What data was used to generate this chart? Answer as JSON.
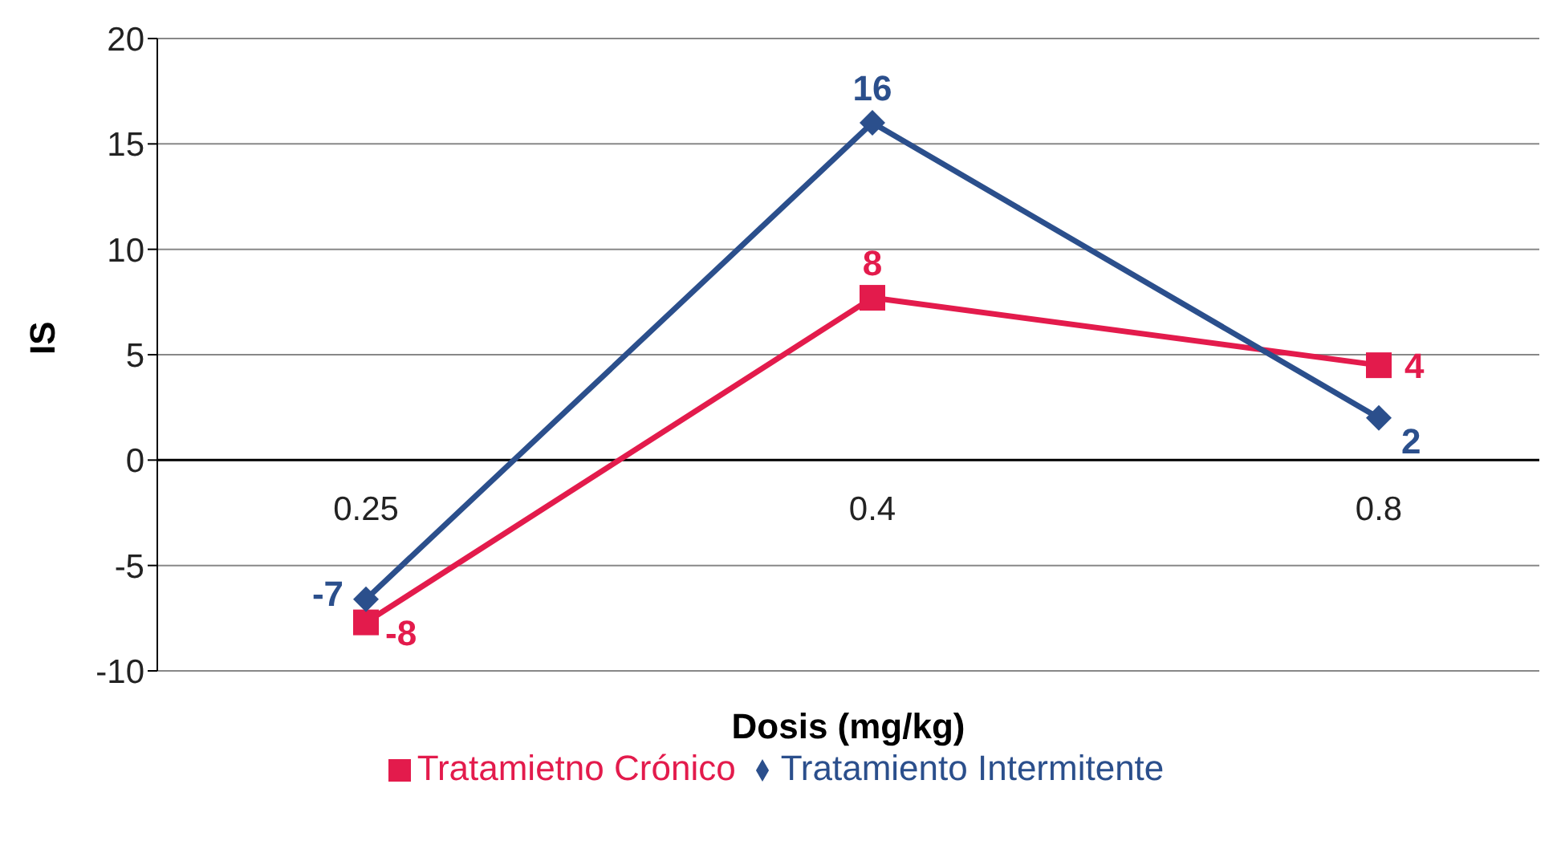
{
  "chart_data": {
    "type": "line",
    "xlabel": "Dosis (mg/kg)",
    "ylabel": "IS",
    "categories": [
      "0.25",
      "0.4",
      "0.8"
    ],
    "series": [
      {
        "name": "Tratamietno Crónico",
        "color": "#e31b4c",
        "values": [
          -7.7,
          7.7,
          4.5
        ],
        "value_labels": [
          "-8",
          "8",
          "4"
        ],
        "marker": "square"
      },
      {
        "name": "Tratamiento Intermitente",
        "color": "#2b4f8c",
        "values": [
          -6.6,
          16,
          2
        ],
        "value_labels": [
          "-7",
          "16",
          "2"
        ],
        "marker": "diamond"
      }
    ],
    "ylim": [
      -10,
      20
    ],
    "yticks": [
      -10,
      -5,
      0,
      5,
      10,
      15,
      20
    ],
    "grid": "y",
    "legend": "bottom",
    "line_style": "solid"
  }
}
